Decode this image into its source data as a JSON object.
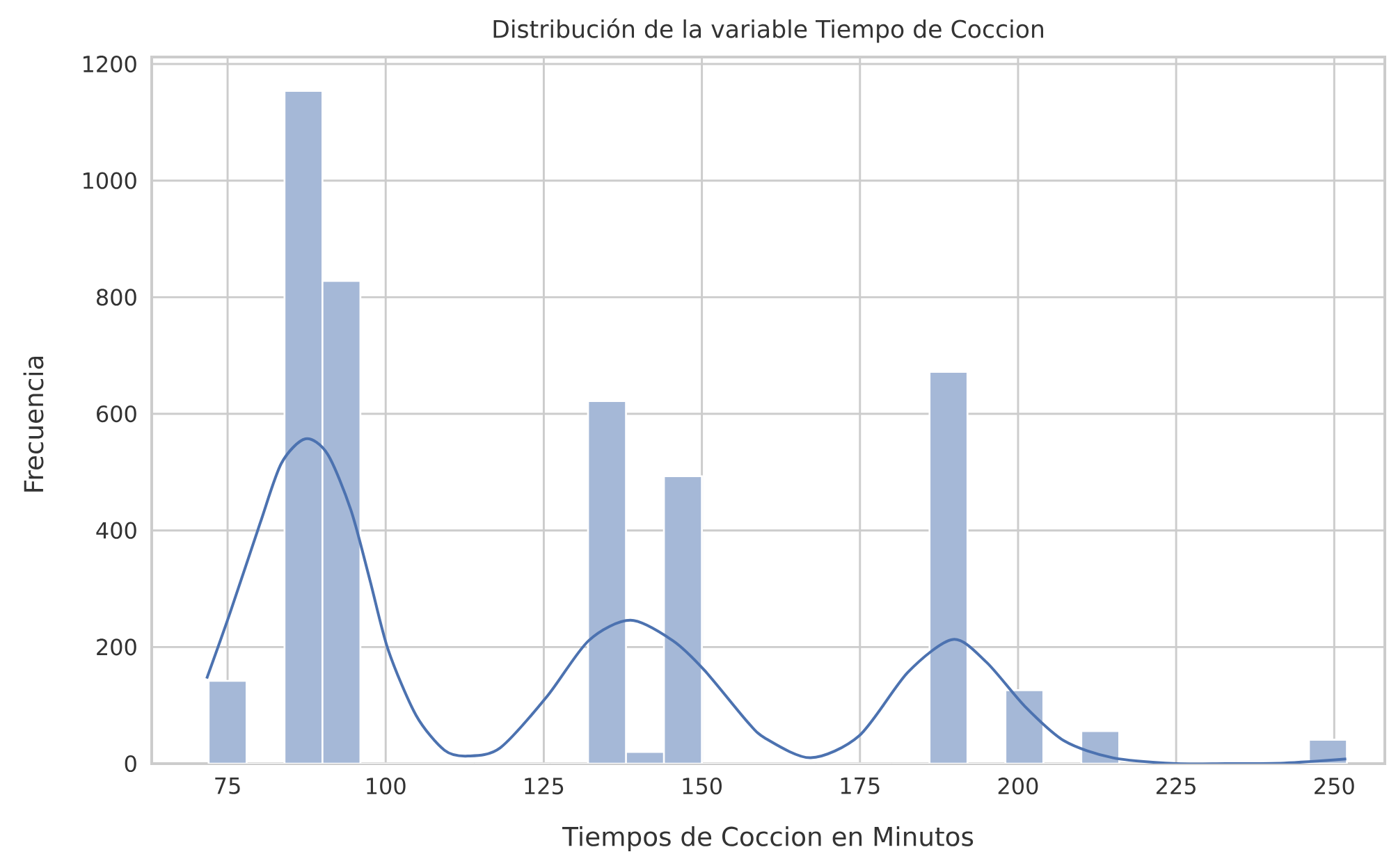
{
  "chart_data": {
    "type": "histogram",
    "title": "Distribución de la variable Tiempo de Coccion",
    "xlabel": "Tiempos de Coccion en Minutos",
    "ylabel": "Frecuencia",
    "xlim": [
      63,
      258
    ],
    "ylim": [
      0,
      1212
    ],
    "xticks": [
      75,
      100,
      125,
      150,
      175,
      200,
      225,
      250
    ],
    "yticks": [
      0,
      200,
      400,
      600,
      800,
      1000,
      1200
    ],
    "grid": true,
    "series": [
      {
        "color": "#a5b8d7",
        "bins": [
          72,
          78,
          84,
          90,
          96,
          102,
          108,
          114,
          120,
          126,
          132,
          138,
          144,
          150,
          156,
          162,
          168,
          174,
          180,
          186,
          192,
          198,
          204,
          210,
          216,
          222,
          228,
          234,
          240,
          246,
          252
        ],
        "values": [
          142,
          0,
          1154,
          828,
          0,
          0,
          0,
          0,
          0,
          0,
          622,
          20,
          493,
          0,
          0,
          0,
          0,
          0,
          0,
          672,
          0,
          126,
          0,
          56,
          0,
          0,
          0,
          0,
          0,
          41
        ]
      },
      {
        "type": "line",
        "color": "#4c72b0",
        "x": [
          71.7,
          75.4,
          80.1,
          83.5,
          87.3,
          90.8,
          94.5,
          97.5,
          100.4,
          104.8,
          109.3,
          113,
          118.1,
          125.5,
          132.1,
          138.7,
          145.4,
          150.5,
          157.1,
          160.1,
          167.2,
          174.9,
          182.6,
          189.7,
          195,
          201.1,
          207.3,
          215,
          225.1,
          232.8,
          242.1,
          251.9
        ],
        "values": [
          146,
          259,
          411,
          515,
          557,
          531,
          435,
          315,
          195,
          83,
          23,
          13,
          27,
          115,
          211,
          246,
          211,
          159,
          73,
          43,
          10,
          48,
          157,
          213,
          174,
          98,
          39,
          10,
          0,
          0,
          1,
          8
        ]
      }
    ]
  }
}
